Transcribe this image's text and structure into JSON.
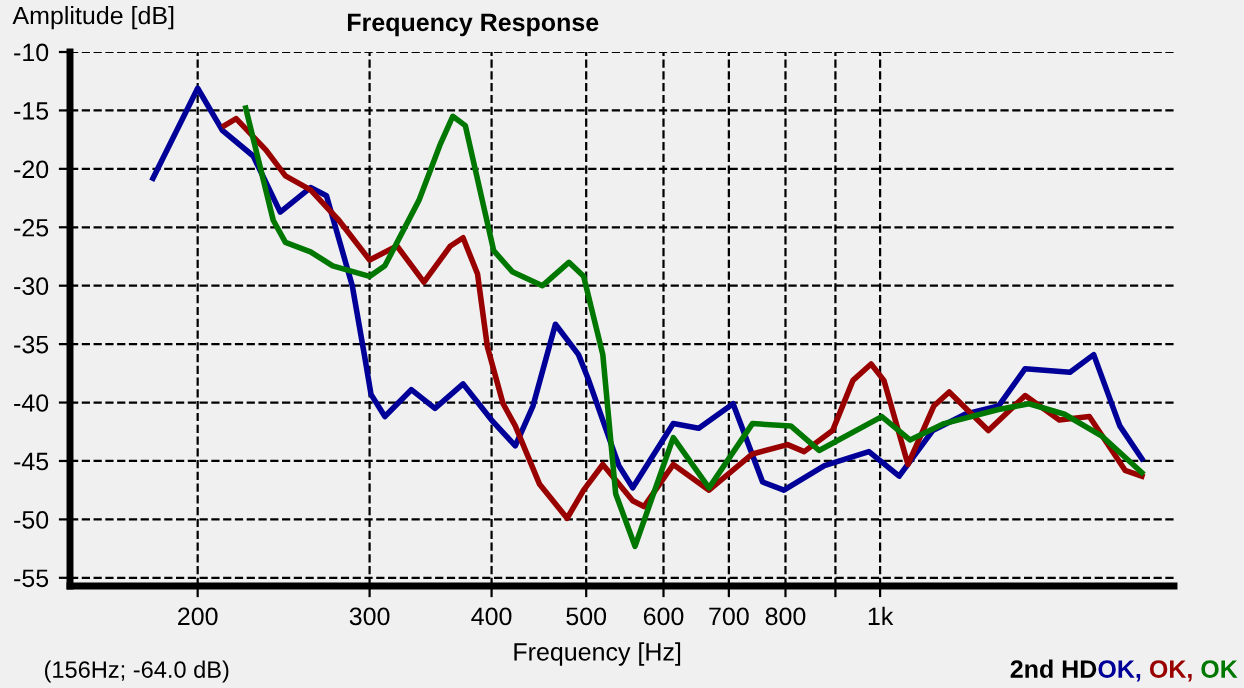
{
  "chart_data": {
    "type": "line",
    "title": "Frequency Response",
    "xlabel": "Frequency [Hz]",
    "ylabel": "Amplitude [dB]",
    "annotations": [
      "(156Hz; -64.0 dB)",
      "2nd HD"
    ],
    "log": "x",
    "xlim": [
      148,
      2000
    ],
    "ylim": [
      -55.7,
      -10
    ],
    "xticks": [
      200,
      300,
      400,
      500,
      600,
      700,
      800,
      {
        "value": 900,
        "label": null
      },
      {
        "value": 1000,
        "label": "1k"
      }
    ],
    "yticks": [
      -10,
      -15,
      -20,
      -25,
      -30,
      -35,
      -40,
      -45,
      -50,
      -55
    ],
    "grid": true,
    "legend": false,
    "series": [
      {
        "name": "OK,",
        "color": "#000099",
        "x": [
          180,
          200,
          212,
          228,
          243,
          261,
          271,
          288,
          297,
          301,
          311,
          331,
          350,
          374,
          400,
          423,
          441,
          465,
          491,
          503,
          540,
          558,
          614,
          652,
          707,
          758,
          797,
          877,
          974,
          1046,
          1132,
          1222,
          1322,
          1408,
          1565,
          1655,
          1760,
          1854
        ],
        "values": [
          -20.8,
          -13.1,
          -16.7,
          -18.9,
          -23.7,
          -21.6,
          -22.3,
          -30,
          -36.4,
          -39.3,
          -41.2,
          -38.9,
          -40.5,
          -38.4,
          -41.5,
          -43.7,
          -40.3,
          -33.3,
          -35.9,
          -38.1,
          -45.4,
          -47.3,
          -41.8,
          -42.2,
          -40.1,
          -46.8,
          -47.5,
          -45.4,
          -44.2,
          -46.3,
          -42.4,
          -41.0,
          -40.3,
          -37.1,
          -37.4,
          -35.9,
          -42.0,
          -44.8
        ]
      },
      {
        "name": "OK,",
        "color": "#990000",
        "x": [
          213,
          219,
          235,
          246,
          261,
          279,
          300,
          320,
          341,
          363,
          374,
          387,
          396,
          411,
          423,
          448,
          478,
          497,
          520,
          558,
          573,
          614,
          668,
          740,
          804,
          836,
          894,
          938,
          979,
          1009,
          1068,
          1135,
          1177,
          1291,
          1408,
          1526,
          1638,
          1782,
          1854
        ],
        "values": [
          -16.3,
          -15.7,
          -18.4,
          -20.6,
          -21.8,
          -24.4,
          -27.8,
          -26.6,
          -29.7,
          -26.6,
          -25.9,
          -29.0,
          -35.2,
          -40.1,
          -42.0,
          -47.0,
          -49.9,
          -47.5,
          -45.3,
          -48.4,
          -48.9,
          -45.3,
          -47.5,
          -44.4,
          -43.6,
          -44.2,
          -42.4,
          -38.1,
          -36.7,
          -38.1,
          -45.3,
          -40.3,
          -39.1,
          -42.4,
          -39.4,
          -41.5,
          -41.2,
          -45.8,
          -46.3
        ]
      },
      {
        "name": "OK",
        "color": "#007700",
        "x": [
          224,
          239,
          246,
          261,
          275,
          300,
          311,
          337,
          354,
          365,
          376,
          402,
          420,
          451,
          480,
          497,
          520,
          536,
          561,
          614,
          668,
          740,
          810,
          866,
          1004,
          1073,
          1163,
          1322,
          1421,
          1545,
          1689,
          1854
        ],
        "values": [
          -14.8,
          -24.4,
          -26.3,
          -27.1,
          -28.3,
          -29.2,
          -28.3,
          -22.7,
          -18.0,
          -15.5,
          -16.3,
          -27.0,
          -28.8,
          -30.0,
          -28.0,
          -29.2,
          -35.9,
          -47.8,
          -52.3,
          -43.0,
          -47.3,
          -41.8,
          -42.0,
          -44.1,
          -41.2,
          -43.2,
          -41.8,
          -40.6,
          -40.1,
          -41.0,
          -42.9,
          -46.0
        ]
      }
    ]
  }
}
